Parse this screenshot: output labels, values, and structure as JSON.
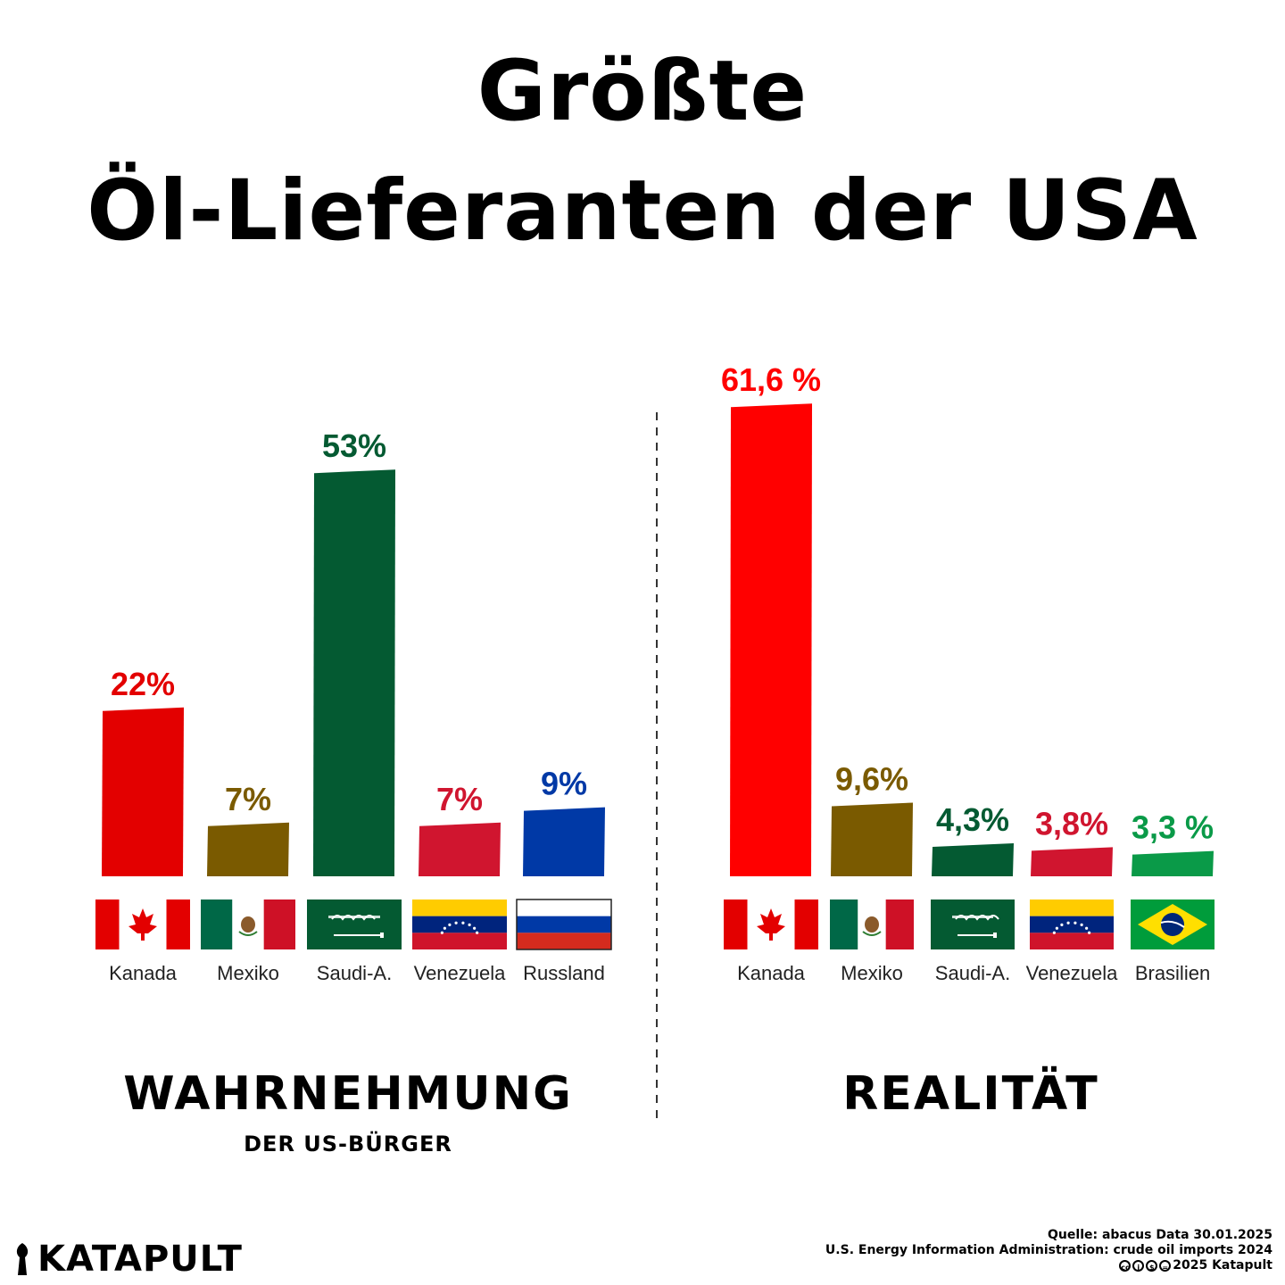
{
  "header": {
    "title_line1": "Größte",
    "title_line2": "Öl-Lieferanten der USA"
  },
  "sections": {
    "left_title": "WAHRNEHMUNG",
    "left_subtitle": "DER US-BÜRGER",
    "right_title": "REALITÄT"
  },
  "chart_data": [
    {
      "type": "bar",
      "name": "WAHRNEHMUNG",
      "categories": [
        "Kanada",
        "Mexiko",
        "Saudi-A.",
        "Venezuela",
        "Russland"
      ],
      "values": [
        22,
        7,
        53,
        7,
        9
      ],
      "value_labels": [
        "22%",
        "7%",
        "53%",
        "7%",
        "9%"
      ],
      "colors": [
        "#e30000",
        "#7a5a00",
        "#045a32",
        "#d0152f",
        "#0039a6"
      ],
      "flags": [
        "canada-flag",
        "mexico-flag",
        "saudi-arabia-flag",
        "venezuela-flag",
        "russia-flag"
      ],
      "unit": "%"
    },
    {
      "type": "bar",
      "name": "REALITÄT",
      "categories": [
        "Kanada",
        "Mexiko",
        "Saudi-A.",
        "Venezuela",
        "Brasilien"
      ],
      "values": [
        61.6,
        9.6,
        4.3,
        3.8,
        3.3
      ],
      "value_labels": [
        "61,6 %",
        "9,6%",
        "4,3%",
        "3,8%",
        "3,3 %"
      ],
      "colors": [
        "#ff0000",
        "#7a5a00",
        "#045a32",
        "#d0152f",
        "#0a9a48"
      ],
      "flags": [
        "canada-flag",
        "mexico-flag",
        "saudi-arabia-flag",
        "venezuela-flag",
        "brazil-flag"
      ],
      "unit": "%"
    }
  ],
  "footer": {
    "logo_text": "KATAPULT",
    "source_line1": "Quelle: abacus Data 30.01.2025",
    "source_line2": "U.S. Energy Information Administration: crude oil imports 2024",
    "source_line3": "2025 Katapult"
  }
}
